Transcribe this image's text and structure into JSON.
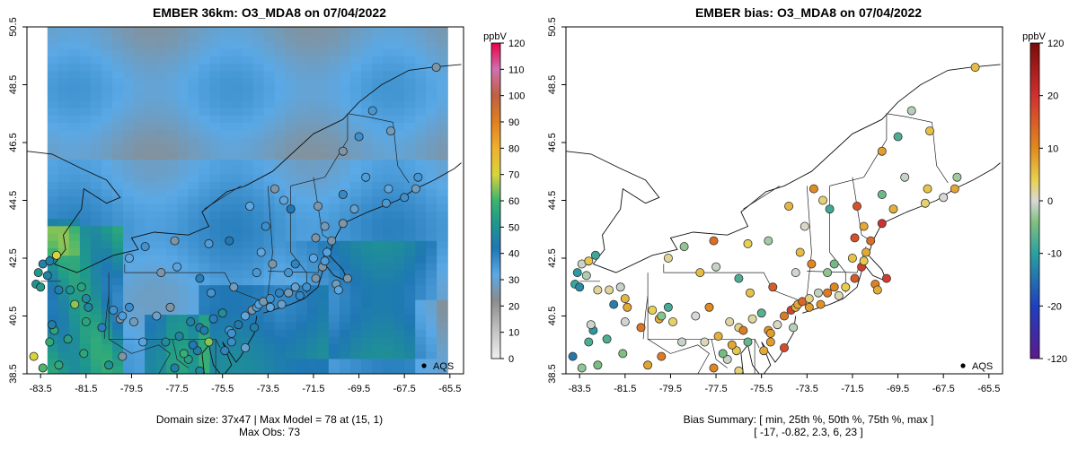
{
  "colors": {
    "frame": "#000000",
    "state_line": "#222222",
    "ocean_model": "#2f8bc4",
    "land_model": "#3a9fb0"
  },
  "left": {
    "title": "EMBER 36km: O3_MDA8 on 07/04/2022",
    "footer_line1": "Domain size: 37x47 | Max Model = 78 at (15, 1)",
    "footer_line2": "Max Obs: 73",
    "legend_label": "AQS",
    "colorbar_unit": "ppbV",
    "x_ticks": [
      "-83.5",
      "-81.5",
      "-79.5",
      "-77.5",
      "-75.5",
      "-73.5",
      "-71.5",
      "-69.5",
      "-67.5",
      "-65.5"
    ],
    "y_ticks": [
      "38.5",
      "40.5",
      "42.5",
      "44.5",
      "46.5",
      "48.5",
      "50.5"
    ],
    "colorbar_ticks": [
      "0",
      "10",
      "20",
      "30",
      "40",
      "50",
      "60",
      "70",
      "80",
      "90",
      "100",
      "110",
      "120"
    ]
  },
  "right": {
    "title": "EMBER bias: O3_MDA8 on 07/04/2022",
    "footer_line1": "Bias Summary: [ min, 25th %, 50th %, 75th %, max ]",
    "footer_line2": "[ -17,   -0.82,   2.3,   6,   23 ]",
    "legend_label": "AQS",
    "colorbar_unit": "ppbV",
    "x_ticks": [
      "-83.5",
      "-81.5",
      "-79.5",
      "-77.5",
      "-75.5",
      "-73.5",
      "-71.5",
      "-69.5",
      "-67.5",
      "-65.5"
    ],
    "y_ticks": [
      "38.5",
      "40.5",
      "42.5",
      "44.5",
      "46.5",
      "48.5",
      "50.5"
    ],
    "colorbar_ticks": [
      "-120",
      "-20",
      "-10",
      "0",
      "10",
      "20",
      "120"
    ]
  },
  "chart_data": [
    {
      "type": "heatmap",
      "title": "EMBER 36km: O3_MDA8 on 07/04/2022",
      "unit": "ppbV",
      "xlim": [
        -84,
        -65
      ],
      "ylim": [
        38.5,
        50.5
      ],
      "colorbar_range": [
        0,
        120
      ],
      "grid": false,
      "legend": "AQS",
      "domain_size": "37x47",
      "max_model": 78,
      "max_model_cell": [
        15,
        1
      ],
      "max_obs": 73
    },
    {
      "type": "scatter",
      "title": "EMBER bias: O3_MDA8 on 07/04/2022",
      "unit": "ppbV",
      "xlim": [
        -84,
        -65
      ],
      "ylim": [
        38.5,
        50.5
      ],
      "colorbar_range": [
        -120,
        120
      ],
      "grid": false,
      "legend": "AQS",
      "bias_summary": {
        "min": -17,
        "p25": -0.82,
        "p50": 2.3,
        "p75": 6,
        "max": 23
      }
    }
  ]
}
